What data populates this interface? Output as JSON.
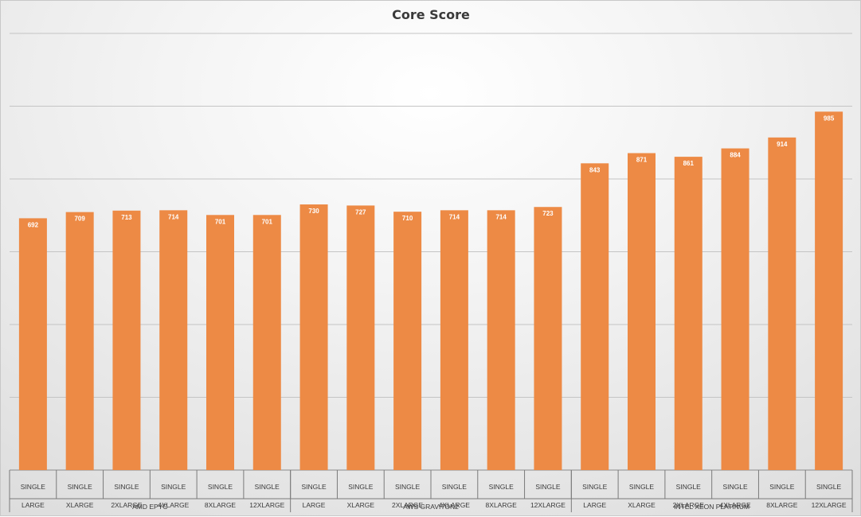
{
  "chart_data": {
    "type": "bar",
    "title": "Core Score",
    "xlabel": "",
    "ylabel": "",
    "ylim": [
      0,
      1200
    ],
    "gridlines": true,
    "gridline_values": [
      200,
      400,
      600,
      800,
      1000,
      1200
    ],
    "y_tick_labels_shown": false,
    "legend": "none",
    "bar_color": "#ED8A45",
    "groups": [
      {
        "label": "AMD EPYC",
        "categories": [
          {
            "line1": "SINGLE",
            "line2": "LARGE"
          },
          {
            "line1": "SINGLE",
            "line2": "XLARGE"
          },
          {
            "line1": "SINGLE",
            "line2": "2XLARGE"
          },
          {
            "line1": "SINGLE",
            "line2": "4XLARGE"
          },
          {
            "line1": "SINGLE",
            "line2": "8XLARGE"
          },
          {
            "line1": "SINGLE",
            "line2": "12XLARGE"
          }
        ],
        "values": [
          692,
          709,
          713,
          714,
          701,
          701
        ]
      },
      {
        "label": "AWS GRAVITON2",
        "categories": [
          {
            "line1": "SINGLE",
            "line2": "LARGE"
          },
          {
            "line1": "SINGLE",
            "line2": "XLARGE"
          },
          {
            "line1": "SINGLE",
            "line2": "2XLARGE"
          },
          {
            "line1": "SINGLE",
            "line2": "4XLARGE"
          },
          {
            "line1": "SINGLE",
            "line2": "8XLARGE"
          },
          {
            "line1": "SINGLE",
            "line2": "12XLARGE"
          }
        ],
        "values": [
          730,
          727,
          710,
          714,
          714,
          723
        ]
      },
      {
        "label": "INTEL XEON PLATINUM",
        "categories": [
          {
            "line1": "SINGLE",
            "line2": "LARGE"
          },
          {
            "line1": "SINGLE",
            "line2": "XLARGE"
          },
          {
            "line1": "SINGLE",
            "line2": "2XLARGE"
          },
          {
            "line1": "SINGLE",
            "line2": "4XLARGE"
          },
          {
            "line1": "SINGLE",
            "line2": "8XLARGE"
          },
          {
            "line1": "SINGLE",
            "line2": "12XLARGE"
          }
        ],
        "values": [
          843,
          871,
          861,
          884,
          914,
          985
        ]
      }
    ]
  }
}
